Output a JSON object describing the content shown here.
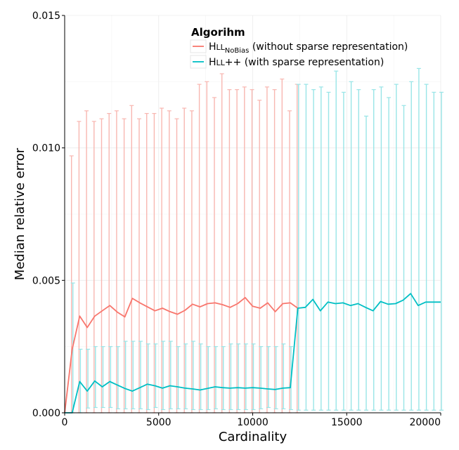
{
  "chart_data": {
    "type": "line",
    "xlabel": "Cardinality",
    "ylabel": "Median relative error",
    "xlim": [
      0,
      20000
    ],
    "ylim": [
      0,
      0.015
    ],
    "x_ticks": [
      "0",
      "5000",
      "10000",
      "15000",
      "20000"
    ],
    "y_ticks": [
      "0.000",
      "0.005",
      "0.010",
      "0.015"
    ],
    "x_tick_values": [
      0,
      5000,
      10000,
      15000,
      20000
    ],
    "y_tick_values": [
      0,
      0.005,
      0.01,
      0.015
    ],
    "grid": true,
    "legend": {
      "title": "Algorihm",
      "position": "top-right",
      "entries": [
        {
          "prefix": "H",
          "smallcaps": "LL",
          "sub": "NoBias",
          "suffix": " (without sparse representation)"
        },
        {
          "prefix": "H",
          "smallcaps": "LL",
          "sub": "",
          "suffix": "++ (with sparse representation)"
        }
      ]
    },
    "series": [
      {
        "color": "#F8766D",
        "x": [
          0,
          400,
          800,
          1200,
          1600,
          2000,
          2400,
          2800,
          3200,
          3600,
          4000,
          4400,
          4800,
          5200,
          5600,
          6000,
          6400,
          6800,
          7200,
          7600,
          8000,
          8400,
          8800,
          9200,
          9600,
          10000,
          10400,
          10800,
          11200,
          11600,
          12000,
          12400,
          12800,
          13200
        ],
        "y": [
          0,
          0.0024,
          0.00365,
          0.00322,
          0.00365,
          0.00385,
          0.00405,
          0.0038,
          0.00362,
          0.00432,
          0.00415,
          0.004,
          0.00385,
          0.00395,
          0.00382,
          0.00372,
          0.00387,
          0.0041,
          0.004,
          0.00412,
          0.00415,
          0.00408,
          0.00398,
          0.00412,
          0.00435,
          0.00402,
          0.00395,
          0.00415,
          0.00382,
          0.00412,
          0.00415,
          0.00395,
          0.0,
          0.0
        ],
        "y_upper": [
          0,
          0.0097,
          0.011,
          0.0114,
          0.011,
          0.0111,
          0.0113,
          0.0114,
          0.0111,
          0.0116,
          0.0111,
          0.0113,
          0.0113,
          0.0115,
          0.0114,
          0.0111,
          0.0115,
          0.0114,
          0.0124,
          0.0125,
          0.0119,
          0.0128,
          0.0122,
          0.0122,
          0.0123,
          0.0122,
          0.0118,
          0.0123,
          0.0122,
          0.0126,
          0.0114,
          0.0124,
          0.0,
          0.0
        ],
        "y_lower": [
          0,
          0.0,
          0.0,
          0.0,
          0.0,
          0.0,
          0.0,
          0.0,
          0.0,
          0.0,
          0.0,
          0.0,
          0.0,
          0.0,
          0.0,
          0.0,
          0.0,
          0.0,
          0.0,
          0.0,
          0.0,
          0.0,
          0.0,
          0.0,
          0.0,
          0.0,
          0.0,
          0.0,
          0.0,
          0.0,
          0.0,
          0.0,
          0.0,
          0.0
        ]
      },
      {
        "color": "#00BFC4",
        "x": [
          0,
          400,
          800,
          1200,
          1600,
          2000,
          2400,
          2800,
          3200,
          3600,
          4000,
          4400,
          4800,
          5200,
          5600,
          6000,
          6400,
          6800,
          7200,
          7600,
          8000,
          8400,
          8800,
          9200,
          9600,
          10000,
          10400,
          10800,
          11200,
          11600,
          12000,
          12400,
          12800,
          13200,
          13600,
          14000,
          14400,
          14800,
          15200,
          15600,
          16000,
          16400,
          16800,
          17200,
          17600,
          18000,
          18400,
          18800,
          19200,
          19600,
          20000
        ],
        "y": [
          0,
          0,
          0.00118,
          0.00082,
          0.0012,
          0.00098,
          0.00118,
          0.00105,
          0.00092,
          0.00082,
          0.00095,
          0.00108,
          0.00102,
          0.00093,
          0.00102,
          0.00098,
          0.00093,
          0.0009,
          0.00086,
          0.00092,
          0.00098,
          0.00095,
          0.00093,
          0.00095,
          0.00093,
          0.00095,
          0.00093,
          0.0009,
          0.00088,
          0.00093,
          0.00095,
          0.00395,
          0.00398,
          0.00428,
          0.00385,
          0.00418,
          0.00412,
          0.00415,
          0.00405,
          0.00412,
          0.00398,
          0.00385,
          0.0042,
          0.0041,
          0.00412,
          0.00425,
          0.0045,
          0.00405,
          0.00418,
          0.00418,
          0.00418
        ],
        "y_upper": [
          0,
          0.0049,
          0.0024,
          0.0024,
          0.0025,
          0.0025,
          0.0025,
          0.0025,
          0.0027,
          0.0027,
          0.0027,
          0.0026,
          0.0026,
          0.0027,
          0.0027,
          0.0025,
          0.0026,
          0.0027,
          0.0026,
          0.0025,
          0.0025,
          0.0025,
          0.0026,
          0.0026,
          0.0026,
          0.0026,
          0.0025,
          0.0025,
          0.0025,
          0.0026,
          0.0025,
          0.0124,
          0.0124,
          0.0122,
          0.0123,
          0.0121,
          0.0129,
          0.0121,
          0.0125,
          0.0122,
          0.0112,
          0.0122,
          0.0123,
          0.0119,
          0.0124,
          0.0116,
          0.0125,
          0.013,
          0.0124,
          0.0121,
          0.0121
        ],
        "y_lower": [
          0,
          0,
          0,
          0.00018,
          0.0002,
          0.0002,
          0.0002,
          0.00015,
          0.00015,
          0.00015,
          0.00015,
          0.00012,
          0.0002,
          0.00012,
          0.00015,
          0.00015,
          0.00015,
          0.00012,
          0.00012,
          0.00012,
          0.00015,
          0.00012,
          0.00012,
          0.00012,
          0.00012,
          0.00012,
          0.00015,
          0.0002,
          0.00015,
          0.00015,
          0.00012,
          0.0001,
          0.0001,
          0.0001,
          0.0001,
          0.0001,
          0.0001,
          0.0001,
          0.0001,
          0.0001,
          0.0001,
          0.0001,
          0.0001,
          0.0001,
          0.0001,
          0.0001,
          0.0001,
          0.0001,
          0.0001,
          0.0001,
          0.0001
        ]
      }
    ]
  }
}
